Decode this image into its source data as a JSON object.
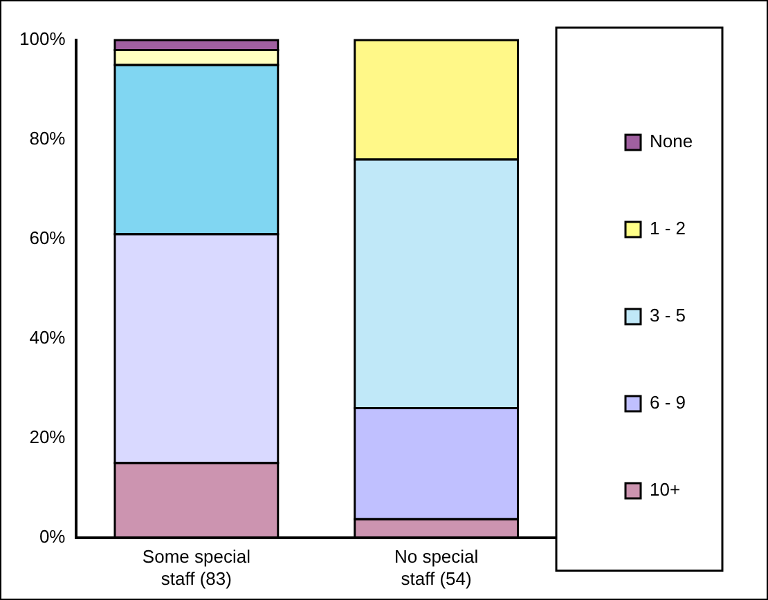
{
  "chart_data": {
    "type": "bar",
    "stacked": true,
    "categories": [
      "Some special\nstaff (83)",
      "No special\nstaff (54)"
    ],
    "series": [
      {
        "name": "10+",
        "color": "#cc94b0",
        "colors": [
          "#cc94b0",
          "#cc94b0"
        ],
        "values": [
          15,
          3.7
        ]
      },
      {
        "name": "6 - 9",
        "color": "#c0c0ff",
        "colors": [
          "#d9d9ff",
          "#c0c0ff"
        ],
        "values": [
          46,
          22.3
        ]
      },
      {
        "name": "3 - 5",
        "color": "#c0e8f8",
        "colors": [
          "#80d6f2",
          "#c0e8f8"
        ],
        "values": [
          34,
          50
        ]
      },
      {
        "name": "1 - 2",
        "color": "#ffff88",
        "colors": [
          "#ffffc0",
          "#fff888"
        ],
        "values": [
          3,
          24
        ]
      },
      {
        "name": "None",
        "color": "#a060a0",
        "colors": [
          "#a060a0",
          "#a060a0"
        ],
        "values": [
          2,
          0
        ]
      }
    ],
    "ylim": [
      0,
      100
    ],
    "yticks": [
      {
        "value": 0,
        "label": "0%"
      },
      {
        "value": 20,
        "label": "20%"
      },
      {
        "value": 40,
        "label": "40%"
      },
      {
        "value": 60,
        "label": "60%"
      },
      {
        "value": 80,
        "label": "80%"
      },
      {
        "value": 100,
        "label": "100%"
      }
    ],
    "grid": false,
    "legend": "right"
  }
}
